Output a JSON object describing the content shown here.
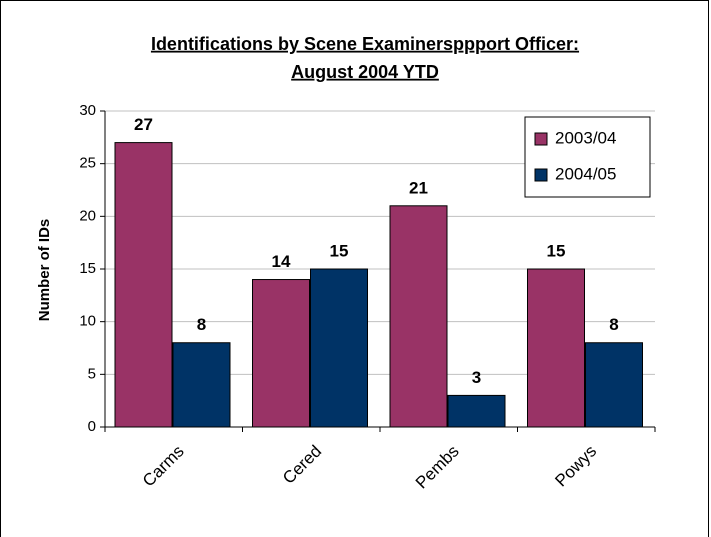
{
  "chart_data": {
    "type": "bar",
    "title": "Identifications by Scene Examinersppport Officer:",
    "subtitle": "August 2004 YTD",
    "y_label": "Number of IDs",
    "categories": [
      "Carms",
      "Cered",
      "Pembs",
      "Powys"
    ],
    "series": [
      {
        "name": "2003/04",
        "color": "#993366",
        "values": [
          27,
          14,
          21,
          15
        ]
      },
      {
        "name": "2004/05",
        "color": "#003366",
        "values": [
          8,
          15,
          3,
          8
        ]
      }
    ],
    "ylim": [
      0,
      30
    ],
    "yticks": [
      0,
      5,
      10,
      15,
      20,
      25,
      30
    ],
    "grid": true,
    "legend": "upper right"
  }
}
